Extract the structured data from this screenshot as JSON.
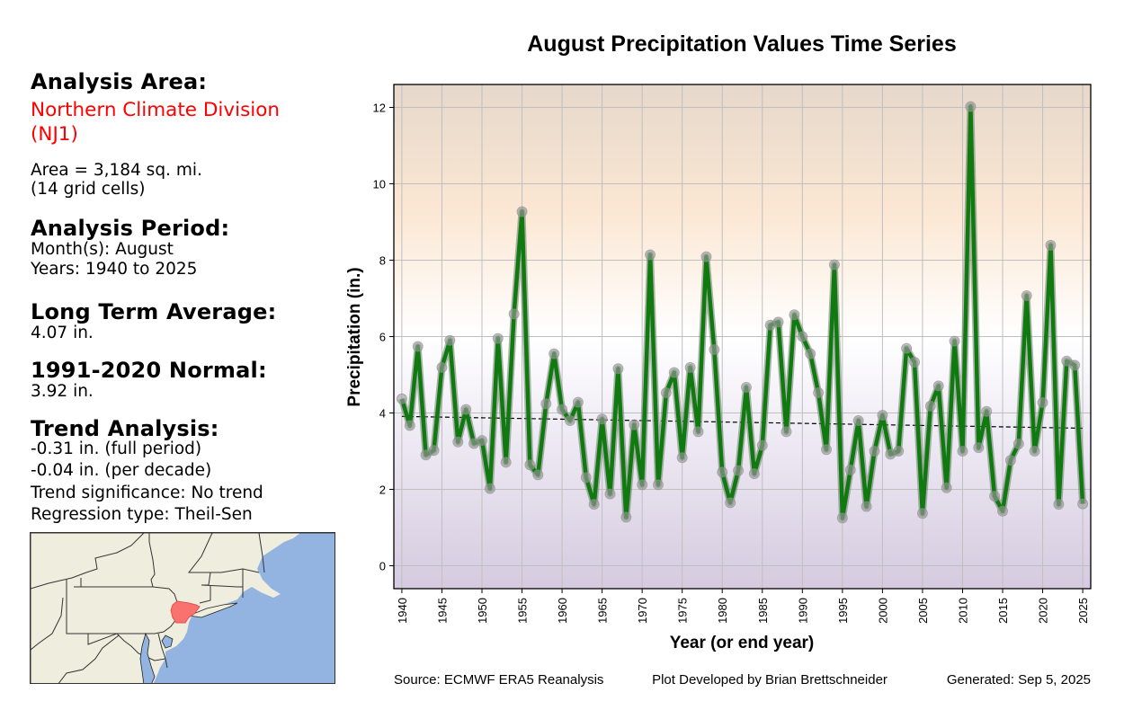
{
  "left_panel": {
    "analysis_area_heading": "Analysis Area:",
    "area_name_line1": "Northern Climate Division",
    "area_name_line2": "(NJ1)",
    "area_size": "Area = 3,184 sq. mi.",
    "grid_cells": "(14 grid cells)",
    "analysis_period_heading": "Analysis Period:",
    "months": "Month(s): August",
    "years": "Years: 1940 to 2025",
    "long_term_average_heading": "Long Term Average:",
    "long_term_average_value": "4.07 in.",
    "normal_heading": "1991-2020 Normal:",
    "normal_value": "3.92 in.",
    "trend_heading": "Trend Analysis:",
    "trend_full_period": "-0.31 in. (full period)",
    "trend_per_decade": "-0.04 in. (per decade)",
    "trend_significance": "Trend significance: No trend",
    "regression_type": "Regression type: Theil-Sen"
  },
  "map": {
    "highlight_region": "Northern Climate Division (NJ1)",
    "colors": {
      "land": "#efedde",
      "water": "#93b3e1",
      "highlight": "#f87370",
      "border": "#333333"
    }
  },
  "footer": {
    "source": "Source: ECMWF ERA5 Reanalysis",
    "developer": "Plot Developed by Brian Brettschneider",
    "generated": "Generated: Sep 5, 2025"
  },
  "colors": {
    "line": "#107a10",
    "marker": "#9b9b9b",
    "trend": "#000000",
    "grid": "#bfbfbf",
    "area_name": "#ff0000"
  },
  "chart_data": {
    "type": "line",
    "title": "August Precipitation Values Time Series",
    "xlabel": "Year (or end year)",
    "ylabel": "Precipitation (in.)",
    "xlim": [
      1939,
      2026
    ],
    "ylim": [
      -0.6,
      12.6
    ],
    "x_ticks": [
      1940,
      1945,
      1950,
      1955,
      1960,
      1965,
      1970,
      1975,
      1980,
      1985,
      1990,
      1995,
      2000,
      2005,
      2010,
      2015,
      2020,
      2025
    ],
    "y_ticks": [
      0,
      2,
      4,
      6,
      8,
      10,
      12
    ],
    "grid": true,
    "background": "vertical gradient: tan at top, white near 6 in., lavender at bottom",
    "x": [
      1940,
      1941,
      1942,
      1943,
      1944,
      1945,
      1946,
      1947,
      1948,
      1949,
      1950,
      1951,
      1952,
      1953,
      1954,
      1955,
      1956,
      1957,
      1958,
      1959,
      1960,
      1961,
      1962,
      1963,
      1964,
      1965,
      1966,
      1967,
      1968,
      1969,
      1970,
      1971,
      1972,
      1973,
      1974,
      1975,
      1976,
      1977,
      1978,
      1979,
      1980,
      1981,
      1982,
      1983,
      1984,
      1985,
      1986,
      1987,
      1988,
      1989,
      1990,
      1991,
      1992,
      1993,
      1994,
      1995,
      1996,
      1997,
      1998,
      1999,
      2000,
      2001,
      2002,
      2003,
      2004,
      2005,
      2006,
      2007,
      2008,
      2009,
      2010,
      2011,
      2012,
      2013,
      2014,
      2015,
      2016,
      2017,
      2018,
      2019,
      2020,
      2021,
      2022,
      2023,
      2024,
      2025
    ],
    "series": [
      {
        "name": "August precipitation",
        "values": [
          4.37,
          3.67,
          5.74,
          2.9,
          3.02,
          5.19,
          5.9,
          3.24,
          4.09,
          3.2,
          3.28,
          2.02,
          5.95,
          2.71,
          6.59,
          9.27,
          2.64,
          2.38,
          4.24,
          5.55,
          4.09,
          3.8,
          4.28,
          2.31,
          1.61,
          3.84,
          1.88,
          5.16,
          1.27,
          3.69,
          2.12,
          8.14,
          2.12,
          4.53,
          5.06,
          2.83,
          5.19,
          3.51,
          8.09,
          5.66,
          2.45,
          1.65,
          2.49,
          4.67,
          2.41,
          3.15,
          6.3,
          6.38,
          3.51,
          6.57,
          6.0,
          5.55,
          4.53,
          3.04,
          7.88,
          1.25,
          2.51,
          3.8,
          1.55,
          3.0,
          3.94,
          2.92,
          3.0,
          5.69,
          5.33,
          1.37,
          4.18,
          4.71,
          2.04,
          5.88,
          3.0,
          12.02,
          3.09,
          4.04,
          1.82,
          1.43,
          2.76,
          3.19,
          7.07,
          3.0,
          4.27,
          8.39,
          1.61,
          5.36,
          5.25,
          1.62
        ]
      },
      {
        "name": "Theil-Sen trend",
        "style": "dashed",
        "x": [
          1940,
          2025
        ],
        "values": [
          3.91,
          3.6
        ]
      }
    ]
  }
}
